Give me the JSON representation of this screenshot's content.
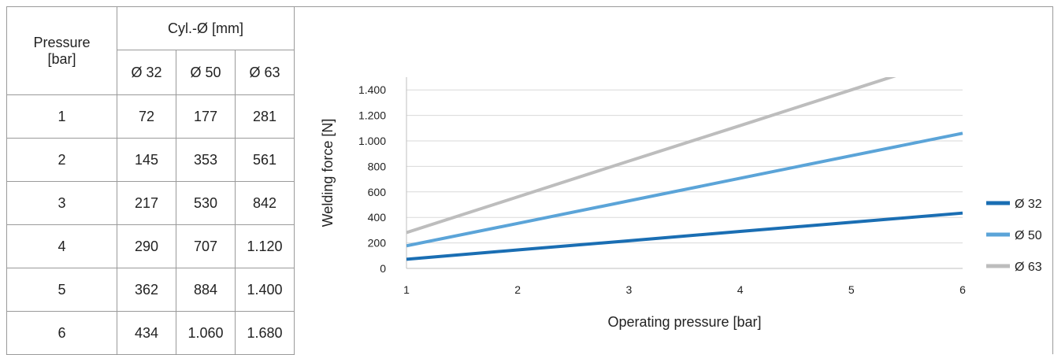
{
  "table": {
    "pressure_header": "Pressure",
    "pressure_unit": "[bar]",
    "cyl_header": "Cyl.-Ø [mm]",
    "columns": [
      "Ø 32",
      "Ø 50",
      "Ø 63"
    ],
    "rows": [
      {
        "p": "1",
        "v": [
          "72",
          "177",
          "281"
        ]
      },
      {
        "p": "2",
        "v": [
          "145",
          "353",
          "561"
        ]
      },
      {
        "p": "3",
        "v": [
          "217",
          "530",
          "842"
        ]
      },
      {
        "p": "4",
        "v": [
          "290",
          "707",
          "1.120"
        ]
      },
      {
        "p": "5",
        "v": [
          "362",
          "884",
          "1.400"
        ]
      },
      {
        "p": "6",
        "v": [
          "434",
          "1.060",
          "1.680"
        ]
      }
    ]
  },
  "chart_data": {
    "type": "line",
    "xlabel": "Operating pressure [bar]",
    "ylabel": "Welding force [N]",
    "x": [
      1,
      2,
      3,
      4,
      5,
      6
    ],
    "x_tick_labels": [
      "1",
      "2",
      "3",
      "4",
      "5",
      "6"
    ],
    "y_ticks": [
      0,
      200,
      400,
      600,
      800,
      1000,
      1200,
      1400
    ],
    "y_tick_labels": [
      "0",
      "200",
      "400",
      "600",
      "800",
      "1.000",
      "1.200",
      "1.400"
    ],
    "xlim": [
      1,
      6
    ],
    "ylim": [
      0,
      1500
    ],
    "grid": "horizontal",
    "legend_position": "right",
    "series": [
      {
        "name": "Ø 32",
        "color": "#1a6eb3",
        "values": [
          72,
          145,
          217,
          290,
          362,
          434
        ]
      },
      {
        "name": "Ø 50",
        "color": "#5ba4d8",
        "values": [
          177,
          353,
          530,
          707,
          884,
          1060
        ]
      },
      {
        "name": "Ø 63",
        "color": "#bdbdbd",
        "values": [
          281,
          561,
          842,
          1120,
          1400,
          1680
        ]
      }
    ]
  }
}
